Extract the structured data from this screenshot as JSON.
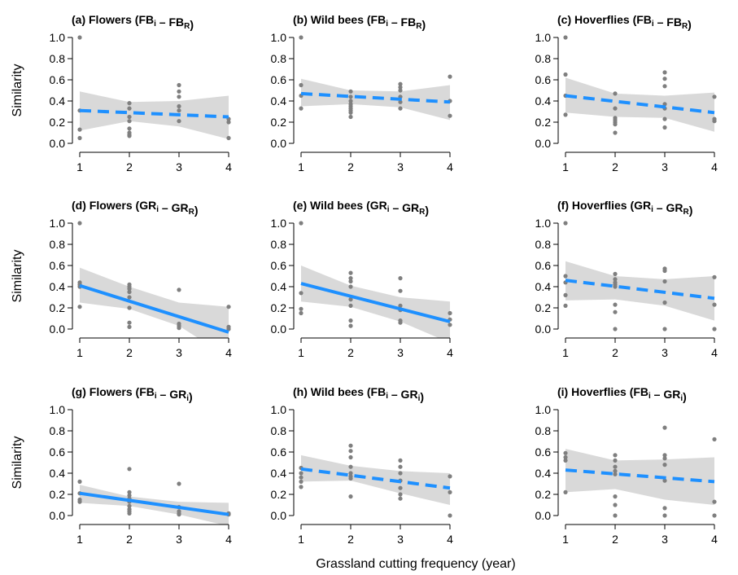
{
  "chart_data": [
    {
      "type": "scatter",
      "title": {
        "letter": "(a)",
        "taxon": "Flowers",
        "lhs": "FB",
        "lhs_sub": "i",
        "rhs": "FB",
        "rhs_sub": "R"
      },
      "x": [
        1,
        1,
        1,
        1,
        2,
        2,
        2,
        2,
        2,
        2,
        2,
        2,
        3,
        3,
        3,
        3,
        3,
        3,
        4,
        4,
        4
      ],
      "y": [
        1.0,
        0.31,
        0.13,
        0.05,
        0.38,
        0.33,
        0.25,
        0.21,
        0.14,
        0.1,
        0.08,
        0.07,
        0.55,
        0.49,
        0.44,
        0.35,
        0.31,
        0.21,
        0.23,
        0.2,
        0.05
      ],
      "fit": {
        "style": "dashed",
        "y_start": 0.31,
        "y_end": 0.25
      },
      "ci": {
        "lower": [
          0.12,
          0.21,
          0.16,
          0.04
        ],
        "upper": [
          0.49,
          0.39,
          0.4,
          0.45
        ]
      },
      "xticks": [
        "1",
        "2",
        "3",
        "4"
      ],
      "yticks": [
        "0.0",
        "0.2",
        "0.4",
        "0.6",
        "0.8",
        "1.0"
      ],
      "xlim": [
        1,
        4
      ],
      "ylim": [
        0,
        1
      ],
      "ylabel": "Similarity"
    },
    {
      "type": "scatter",
      "title": {
        "letter": "(b)",
        "taxon": "Wild bees",
        "lhs": "FB",
        "lhs_sub": "i",
        "rhs": "FB",
        "rhs_sub": "R"
      },
      "x": [
        1,
        1,
        1,
        1,
        2,
        2,
        2,
        2,
        2,
        2,
        2,
        2,
        2,
        3,
        3,
        3,
        3,
        3,
        3,
        4,
        4,
        4
      ],
      "y": [
        1.0,
        0.55,
        0.45,
        0.33,
        0.49,
        0.44,
        0.4,
        0.37,
        0.35,
        0.33,
        0.31,
        0.29,
        0.25,
        0.56,
        0.53,
        0.5,
        0.44,
        0.39,
        0.33,
        0.63,
        0.4,
        0.26
      ],
      "fit": {
        "style": "dashed",
        "y_start": 0.47,
        "y_end": 0.39
      },
      "ci": {
        "lower": [
          0.35,
          0.37,
          0.34,
          0.22
        ],
        "upper": [
          0.61,
          0.5,
          0.49,
          0.55
        ]
      },
      "xticks": [
        "1",
        "2",
        "3",
        "4"
      ],
      "yticks": [
        "0.0",
        "0.2",
        "0.4",
        "0.6",
        "0.8",
        "1.0"
      ],
      "xlim": [
        1,
        4
      ],
      "ylim": [
        0,
        1
      ]
    },
    {
      "type": "scatter",
      "title": {
        "letter": "(c)",
        "taxon": "Hoverflies",
        "lhs": "FB",
        "lhs_sub": "i",
        "rhs": "FB",
        "rhs_sub": "R"
      },
      "x": [
        1,
        1,
        1,
        1,
        2,
        2,
        2,
        2,
        2,
        2,
        2,
        3,
        3,
        3,
        3,
        3,
        3,
        3,
        4,
        4,
        4
      ],
      "y": [
        1.0,
        0.65,
        0.45,
        0.27,
        0.47,
        0.33,
        0.24,
        0.22,
        0.2,
        0.18,
        0.1,
        0.67,
        0.61,
        0.54,
        0.37,
        0.33,
        0.23,
        0.15,
        0.44,
        0.23,
        0.21
      ],
      "fit": {
        "style": "dashed",
        "y_start": 0.45,
        "y_end": 0.29
      },
      "ci": {
        "lower": [
          0.29,
          0.25,
          0.24,
          0.11
        ],
        "upper": [
          0.62,
          0.47,
          0.45,
          0.48
        ]
      },
      "xticks": [
        "1",
        "2",
        "3",
        "4"
      ],
      "yticks": [
        "0.0",
        "0.2",
        "0.4",
        "0.6",
        "0.8",
        "1.0"
      ],
      "xlim": [
        1,
        4
      ],
      "ylim": [
        0,
        1
      ]
    },
    {
      "type": "scatter",
      "title": {
        "letter": "(d)",
        "taxon": "Flowers",
        "lhs": "GR",
        "lhs_sub": "i",
        "rhs": "GR",
        "rhs_sub": "R"
      },
      "x": [
        1,
        1,
        1,
        1,
        1,
        2,
        2,
        2,
        2,
        2,
        2,
        2,
        2,
        3,
        3,
        3,
        3,
        4,
        4,
        4
      ],
      "y": [
        1.0,
        0.44,
        0.42,
        0.4,
        0.21,
        0.42,
        0.4,
        0.38,
        0.35,
        0.3,
        0.2,
        0.06,
        0.02,
        0.37,
        0.05,
        0.03,
        0.01,
        0.21,
        0.02,
        0.0
      ],
      "fit": {
        "style": "solid",
        "y_start": 0.41,
        "y_end": -0.03
      },
      "ci": {
        "lower": [
          0.25,
          0.19,
          0.03,
          -0.27
        ],
        "upper": [
          0.58,
          0.4,
          0.25,
          0.21
        ]
      },
      "xticks": [
        "1",
        "2",
        "3",
        "4"
      ],
      "yticks": [
        "0.0",
        "0.2",
        "0.4",
        "0.6",
        "0.8",
        "1.0"
      ],
      "xlim": [
        1,
        4
      ],
      "ylim": [
        0,
        1
      ],
      "ylabel": "Similarity"
    },
    {
      "type": "scatter",
      "title": {
        "letter": "(e)",
        "taxon": "Wild bees",
        "lhs": "GR",
        "lhs_sub": "i",
        "rhs": "GR",
        "rhs_sub": "R"
      },
      "x": [
        1,
        1,
        1,
        1,
        2,
        2,
        2,
        2,
        2,
        2,
        2,
        2,
        3,
        3,
        3,
        3,
        3,
        3,
        4,
        4,
        4
      ],
      "y": [
        1.0,
        0.34,
        0.19,
        0.15,
        0.53,
        0.48,
        0.45,
        0.4,
        0.28,
        0.22,
        0.08,
        0.03,
        0.48,
        0.36,
        0.22,
        0.18,
        0.08,
        0.06,
        0.15,
        0.09,
        0.04
      ],
      "fit": {
        "style": "solid",
        "y_start": 0.43,
        "y_end": 0.07
      },
      "ci": {
        "lower": [
          0.26,
          0.21,
          0.07,
          -0.13
        ],
        "upper": [
          0.6,
          0.41,
          0.3,
          0.26
        ]
      },
      "xticks": [
        "1",
        "2",
        "3",
        "4"
      ],
      "yticks": [
        "0.0",
        "0.2",
        "0.4",
        "0.6",
        "0.8",
        "1.0"
      ],
      "xlim": [
        1,
        4
      ],
      "ylim": [
        0,
        1
      ]
    },
    {
      "type": "scatter",
      "title": {
        "letter": "(f)",
        "taxon": "Hoverflies",
        "lhs": "GR",
        "lhs_sub": "i",
        "rhs": "GR",
        "rhs_sub": "R"
      },
      "x": [
        1,
        1,
        1,
        1,
        1,
        2,
        2,
        2,
        2,
        2,
        2,
        2,
        2,
        3,
        3,
        3,
        3,
        3,
        4,
        4,
        4
      ],
      "y": [
        1.0,
        0.5,
        0.44,
        0.32,
        0.22,
        0.52,
        0.47,
        0.44,
        0.42,
        0.4,
        0.23,
        0.16,
        0.0,
        0.57,
        0.55,
        0.45,
        0.25,
        0.0,
        0.49,
        0.23,
        0.0
      ],
      "fit": {
        "style": "dashed",
        "y_start": 0.46,
        "y_end": 0.29
      },
      "ci": {
        "lower": [
          0.27,
          0.28,
          0.22,
          0.08
        ],
        "upper": [
          0.64,
          0.5,
          0.47,
          0.5
        ]
      },
      "xticks": [
        "1",
        "2",
        "3",
        "4"
      ],
      "yticks": [
        "0.0",
        "0.2",
        "0.4",
        "0.6",
        "0.8",
        "1.0"
      ],
      "xlim": [
        1,
        4
      ],
      "ylim": [
        0,
        1
      ]
    },
    {
      "type": "scatter",
      "title": {
        "letter": "(g)",
        "taxon": "Flowers",
        "lhs": "FB",
        "lhs_sub": "i",
        "rhs": "GR",
        "rhs_sub": "i"
      },
      "x": [
        1,
        1,
        1,
        1,
        2,
        2,
        2,
        2,
        2,
        2,
        2,
        2,
        2,
        3,
        3,
        3,
        3,
        3,
        4,
        4
      ],
      "y": [
        0.32,
        0.21,
        0.15,
        0.13,
        0.44,
        0.22,
        0.19,
        0.16,
        0.13,
        0.09,
        0.06,
        0.04,
        0.02,
        0.3,
        0.08,
        0.04,
        0.02,
        0.01,
        0.02,
        0.01
      ],
      "fit": {
        "style": "solid",
        "y_start": 0.21,
        "y_end": 0.01
      },
      "ci": {
        "lower": [
          0.12,
          0.09,
          0.01,
          -0.1
        ],
        "upper": [
          0.29,
          0.18,
          0.13,
          0.12
        ]
      },
      "xticks": [
        "1",
        "2",
        "3",
        "4"
      ],
      "yticks": [
        "0.0",
        "0.2",
        "0.4",
        "0.6",
        "0.8",
        "1.0"
      ],
      "xlim": [
        1,
        4
      ],
      "ylim": [
        0,
        1
      ],
      "ylabel": "Similarity"
    },
    {
      "type": "scatter",
      "title": {
        "letter": "(h)",
        "taxon": "Wild bees",
        "lhs": "FB",
        "lhs_sub": "i",
        "rhs": "GR",
        "rhs_sub": "i"
      },
      "x": [
        1,
        1,
        1,
        1,
        1,
        2,
        2,
        2,
        2,
        2,
        2,
        2,
        2,
        3,
        3,
        3,
        3,
        3,
        3,
        3,
        4,
        4,
        4
      ],
      "y": [
        0.45,
        0.4,
        0.36,
        0.32,
        0.27,
        0.66,
        0.61,
        0.55,
        0.46,
        0.4,
        0.37,
        0.35,
        0.18,
        0.52,
        0.46,
        0.4,
        0.33,
        0.26,
        0.2,
        0.16,
        0.37,
        0.22,
        0.0
      ],
      "fit": {
        "style": "dashed",
        "y_start": 0.44,
        "y_end": 0.26
      },
      "ci": {
        "lower": [
          0.32,
          0.33,
          0.21,
          0.1
        ],
        "upper": [
          0.57,
          0.47,
          0.42,
          0.4
        ]
      },
      "xticks": [
        "1",
        "2",
        "3",
        "4"
      ],
      "yticks": [
        "0.0",
        "0.2",
        "0.4",
        "0.6",
        "0.8",
        "1.0"
      ],
      "xlim": [
        1,
        4
      ],
      "ylim": [
        0,
        1
      ]
    },
    {
      "type": "scatter",
      "title": {
        "letter": "(i)",
        "taxon": "Hoverflies",
        "lhs": "FB",
        "lhs_sub": "i",
        "rhs": "GR",
        "rhs_sub": "i"
      },
      "x": [
        1,
        1,
        1,
        1,
        2,
        2,
        2,
        2,
        2,
        2,
        2,
        2,
        3,
        3,
        3,
        3,
        3,
        3,
        3,
        4,
        4,
        4
      ],
      "y": [
        0.59,
        0.55,
        0.52,
        0.22,
        0.57,
        0.52,
        0.46,
        0.42,
        0.39,
        0.18,
        0.1,
        0.0,
        0.83,
        0.57,
        0.54,
        0.48,
        0.33,
        0.07,
        0.0,
        0.72,
        0.13,
        0.0
      ],
      "fit": {
        "style": "dashed",
        "y_start": 0.43,
        "y_end": 0.32
      },
      "ci": {
        "lower": [
          0.22,
          0.25,
          0.15,
          0.1
        ],
        "upper": [
          0.63,
          0.52,
          0.53,
          0.55
        ]
      },
      "xticks": [
        "1",
        "2",
        "3",
        "4"
      ],
      "yticks": [
        "0.0",
        "0.2",
        "0.4",
        "0.6",
        "0.8",
        "1.0"
      ],
      "xlim": [
        1,
        4
      ],
      "ylim": [
        0,
        1
      ]
    }
  ],
  "figure": {
    "xlabel": "Grassland cutting frequency (year)",
    "colors": {
      "fit": "#1e90ff",
      "band": "#d9d9d9",
      "points": "#7f7f7f"
    }
  }
}
